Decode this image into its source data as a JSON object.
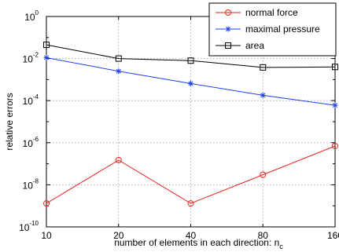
{
  "chart_data": {
    "type": "line",
    "xscale": "log",
    "yscale": "log",
    "x": [
      10,
      20,
      40,
      80,
      160
    ],
    "x_tick_labels": [
      "10",
      "20",
      "40",
      "80",
      "160"
    ],
    "y_tick_exponents": [
      0,
      -2,
      -4,
      -6,
      -8,
      -10
    ],
    "xlim": [
      10,
      160
    ],
    "ylim": [
      1e-10,
      1
    ],
    "xlabel_main": "number of elements in each direction: n",
    "xlabel_sub": "c",
    "ylabel": "relative errors",
    "grid": true,
    "legend_position": "top-right",
    "series": [
      {
        "name": "normal force",
        "color": "#e8251f",
        "marker": "circle",
        "values": [
          1.3e-09,
          1.5e-07,
          1.3e-09,
          3e-08,
          7e-07
        ]
      },
      {
        "name": "maximal pressure",
        "color": "#1f3fe8",
        "marker": "star",
        "values": [
          0.011,
          0.0025,
          0.00065,
          0.00018,
          6e-05
        ]
      },
      {
        "name": "area",
        "color": "#000000",
        "marker": "square",
        "values": [
          0.045,
          0.01,
          0.008,
          0.0038,
          0.004
        ]
      }
    ]
  }
}
